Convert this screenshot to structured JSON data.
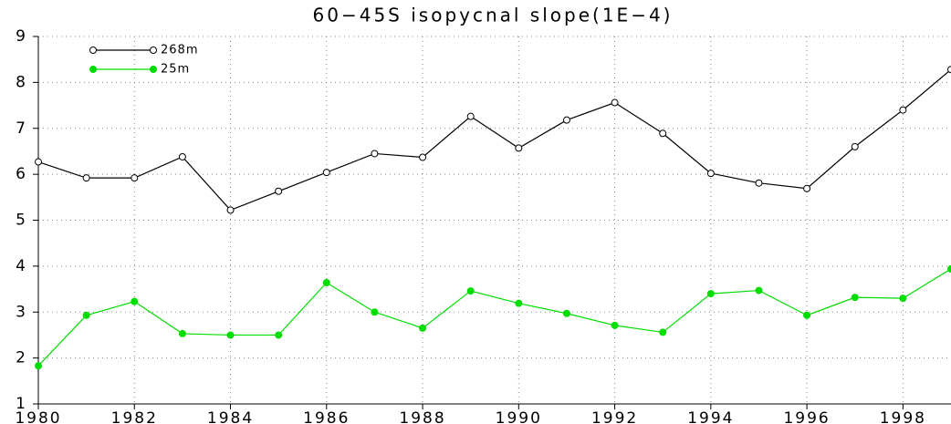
{
  "chart_data": {
    "type": "line",
    "title": "60−45S isopycnal slope(1E−4)",
    "x": [
      1980,
      1981,
      1982,
      1983,
      1984,
      1985,
      1986,
      1987,
      1988,
      1989,
      1990,
      1991,
      1992,
      1993,
      1994,
      1995,
      1996,
      1997,
      1998,
      1999
    ],
    "series": [
      {
        "name": "268m",
        "color": "#000000",
        "marker": "open-circle",
        "values": [
          6.27,
          5.92,
          5.92,
          6.38,
          5.22,
          5.63,
          6.04,
          6.45,
          6.37,
          7.26,
          6.57,
          7.18,
          7.56,
          6.89,
          6.02,
          5.81,
          5.69,
          6.6,
          7.4,
          8.28
        ]
      },
      {
        "name": "25m",
        "color": "#00dd00",
        "marker": "filled-circle",
        "values": [
          1.83,
          2.93,
          3.23,
          2.53,
          2.5,
          2.5,
          3.64,
          3.0,
          2.65,
          3.46,
          3.19,
          2.97,
          2.71,
          2.56,
          3.4,
          3.47,
          2.93,
          3.32,
          3.3,
          3.94
        ]
      }
    ],
    "xlim": [
      1980,
      1999
    ],
    "xticks": [
      1980,
      1982,
      1984,
      1986,
      1988,
      1990,
      1992,
      1994,
      1996,
      1998
    ],
    "ylim": [
      1,
      9
    ],
    "yticks": [
      1,
      2,
      3,
      4,
      5,
      6,
      7,
      8,
      9
    ],
    "grid": true,
    "legend": "upper-left"
  }
}
